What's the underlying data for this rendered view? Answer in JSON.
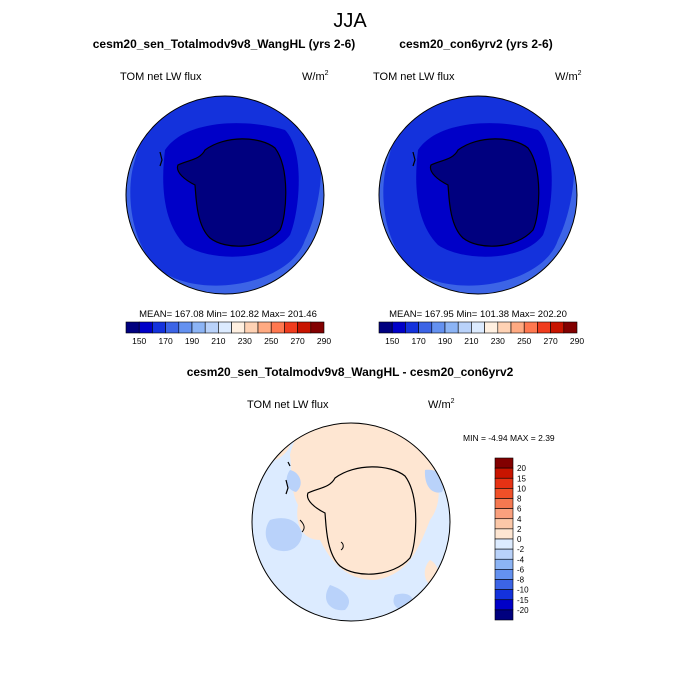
{
  "page": {
    "season": "JJA"
  },
  "panels": [
    {
      "title": "cesm20_sen_Totalmodv9v8_WangHL (yrs 2-6)",
      "variable": "TOM net LW flux",
      "units_base": "W/m",
      "units_exp": "2",
      "stats": "MEAN= 167.08  Min= 102.82  Max= 201.46"
    },
    {
      "title": "cesm20_con6yrv2 (yrs 2-6)",
      "variable": "TOM net LW flux",
      "units_base": "W/m",
      "units_exp": "2",
      "stats": "MEAN= 167.95  Min= 101.38  Max= 202.20"
    }
  ],
  "diff": {
    "title": "cesm20_sen_Totalmodv9v8_WangHL - cesm20_con6yrv2",
    "variable": "TOM net LW flux",
    "units_base": "W/m",
    "units_exp": "2",
    "minmax": "MIN =  -4.94 MAX =   2.39"
  },
  "chart_data": [
    {
      "type": "heatmap",
      "title": "cesm20_sen_Totalmodv9v8_WangHL (yrs 2-6)",
      "projection": "south-polar-stereographic",
      "variable": "TOM net LW flux",
      "units": "W/m^2",
      "mean": 167.08,
      "min": 102.82,
      "max": 201.46,
      "colorbar": {
        "colors": [
          "#00007f",
          "#0000c8",
          "#1432dc",
          "#3c64e6",
          "#6491f0",
          "#8cb4f5",
          "#b9d2fa",
          "#dcebff",
          "#fff0e1",
          "#ffd2b4",
          "#ffaa82",
          "#ff7850",
          "#f03c1e",
          "#c81400",
          "#820000"
        ],
        "tick_labels": [
          "150",
          "170",
          "190",
          "210",
          "230",
          "250",
          "270",
          "290"
        ]
      }
    },
    {
      "type": "heatmap",
      "title": "cesm20_con6yrv2 (yrs 2-6)",
      "projection": "south-polar-stereographic",
      "variable": "TOM net LW flux",
      "units": "W/m^2",
      "mean": 167.95,
      "min": 101.38,
      "max": 202.2,
      "colorbar": {
        "colors": [
          "#00007f",
          "#0000c8",
          "#1432dc",
          "#3c64e6",
          "#6491f0",
          "#8cb4f5",
          "#b9d2fa",
          "#dcebff",
          "#fff0e1",
          "#ffd2b4",
          "#ffaa82",
          "#ff7850",
          "#f03c1e",
          "#c81400",
          "#820000"
        ],
        "tick_labels": [
          "150",
          "170",
          "190",
          "210",
          "230",
          "250",
          "270",
          "290"
        ]
      }
    },
    {
      "type": "heatmap",
      "title": "cesm20_sen_Totalmodv9v8_WangHL - cesm20_con6yrv2",
      "projection": "south-polar-stereographic",
      "variable": "TOM net LW flux",
      "units": "W/m^2",
      "min": -4.94,
      "max": 2.39,
      "colorbar": {
        "orientation": "vertical",
        "colors": [
          "#820000",
          "#c81400",
          "#e63214",
          "#f05028",
          "#f57850",
          "#faa07d",
          "#fcc8a8",
          "#fee6d2",
          "#dcebff",
          "#b9d2fa",
          "#8cb4f5",
          "#6491f0",
          "#3c64e6",
          "#1432dc",
          "#0000c8",
          "#00007f"
        ],
        "tick_labels": [
          "20",
          "15",
          "10",
          "8",
          "6",
          "4",
          "2",
          "0",
          "-2",
          "-4",
          "-6",
          "-8",
          "-10",
          "-15",
          "-20"
        ]
      }
    }
  ]
}
